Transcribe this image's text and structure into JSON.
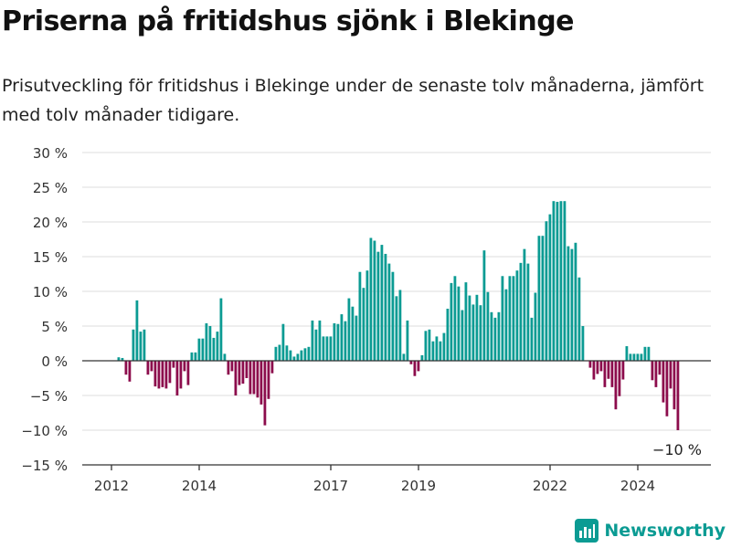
{
  "title": "Priserna på fritidshus sjönk i Blekinge",
  "subtitle": "Prisutveckling för fritidshus i Blekinge under de senaste tolv månaderna, jämfört med tolv månader tidigare.",
  "brand": "Newsworthy",
  "colors": {
    "positive": "#0b9b93",
    "negative": "#8c0c4c",
    "grid": "#dddddd",
    "axis": "#333333",
    "brand": "#0b9b93"
  },
  "chart_data": {
    "type": "bar",
    "ylim": [
      -15,
      30
    ],
    "yticks": [
      30,
      25,
      20,
      15,
      10,
      5,
      0,
      -5,
      -10,
      -15
    ],
    "ytick_labels": [
      "30 %",
      "25 %",
      "20 %",
      "15 %",
      "10 %",
      "5 %",
      "0 %",
      "−5 %",
      "−10 %",
      "−15 %"
    ],
    "grid": true,
    "xticks": [
      {
        "label": "2012",
        "pos": 0
      },
      {
        "label": "2014",
        "pos": 24
      },
      {
        "label": "2017",
        "pos": 60
      },
      {
        "label": "2019",
        "pos": 84
      },
      {
        "label": "2022",
        "pos": 120
      },
      {
        "label": "2024",
        "pos": 144
      }
    ],
    "annotation": {
      "text": "−10 %",
      "index": 155
    },
    "values": [
      0,
      0,
      0.5,
      0.4,
      -2,
      -3,
      4.5,
      8.7,
      4.2,
      4.5,
      -2,
      -1.5,
      -3.7,
      -4,
      -3.8,
      -4,
      -3.2,
      -1,
      -5,
      -4,
      -1.5,
      -3.5,
      1.2,
      1.2,
      3.2,
      3.2,
      5.4,
      5,
      3.3,
      4.2,
      9,
      1,
      -2,
      -1.5,
      -5,
      -3.5,
      -3.3,
      -2.5,
      -4.8,
      -4.8,
      -5.3,
      -6.3,
      -9.3,
      -5.5,
      -1.8,
      2,
      2.3,
      5.3,
      2.2,
      1.5,
      0.6,
      1,
      1.5,
      1.8,
      2,
      5.8,
      4.5,
      5.8,
      3.5,
      3.5,
      3.5,
      5.4,
      5.3,
      6.7,
      5.7,
      9,
      7.8,
      6.5,
      12.8,
      10.5,
      13,
      17.7,
      17.3,
      15.7,
      16.7,
      15.4,
      14,
      12.8,
      9.3,
      10.2,
      1,
      5.8,
      -0.5,
      -2.2,
      -1.5,
      0.8,
      4.3,
      4.5,
      2.8,
      3.5,
      2.8,
      4,
      7.5,
      11.2,
      12.2,
      10.7,
      7.3,
      11.3,
      9.4,
      8.1,
      9.5,
      8,
      15.9,
      9.9,
      7,
      6.2,
      7,
      12.2,
      10.3,
      12.2,
      12.2,
      13,
      14.1,
      16.1,
      14,
      6.2,
      9.8,
      18,
      18,
      20.1,
      21.1,
      23,
      22.9,
      23,
      23,
      16.5,
      16.1,
      17,
      12,
      5,
      0,
      -1,
      -2.7,
      -1.9,
      -1.5,
      -3.8,
      -2.6,
      -3.8,
      -7,
      -5.1,
      -2.7,
      2.1,
      1,
      1,
      1,
      1,
      2,
      2,
      -2.8,
      -3.8,
      -2,
      -6,
      -8,
      -4,
      -7,
      -10
    ]
  }
}
